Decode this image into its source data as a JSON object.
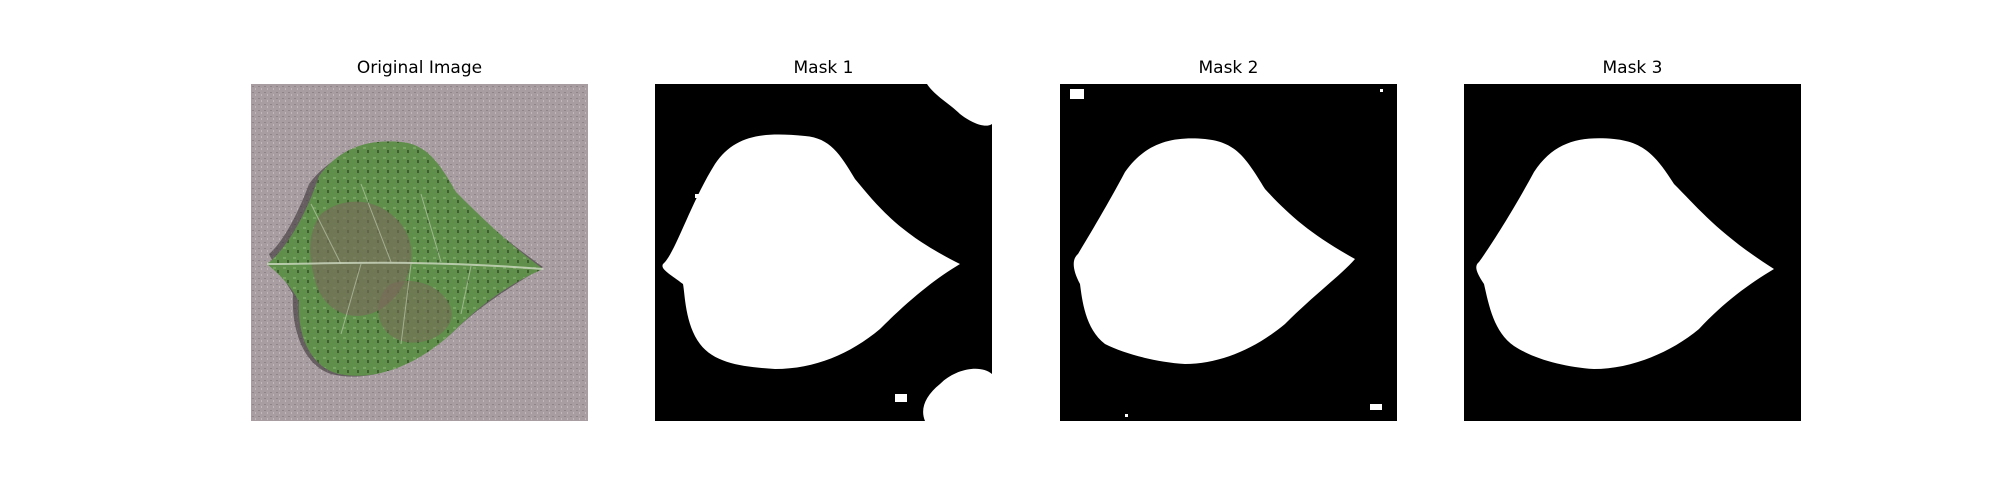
{
  "figure": {
    "panels": [
      {
        "title": "Original Image",
        "kind": "photo",
        "subject": "leaf-photo"
      },
      {
        "title": "Mask 1",
        "kind": "mask"
      },
      {
        "title": "Mask 2",
        "kind": "mask"
      },
      {
        "title": "Mask 3",
        "kind": "mask"
      }
    ]
  },
  "colors": {
    "background": "#ffffff",
    "mask_bg": "#000000",
    "mask_fg": "#ffffff",
    "leaf_green": "#5f8f4a",
    "leaf_dark": "#3e5e30",
    "ground": "#a89ea2",
    "blight": "#7a6a5a"
  }
}
